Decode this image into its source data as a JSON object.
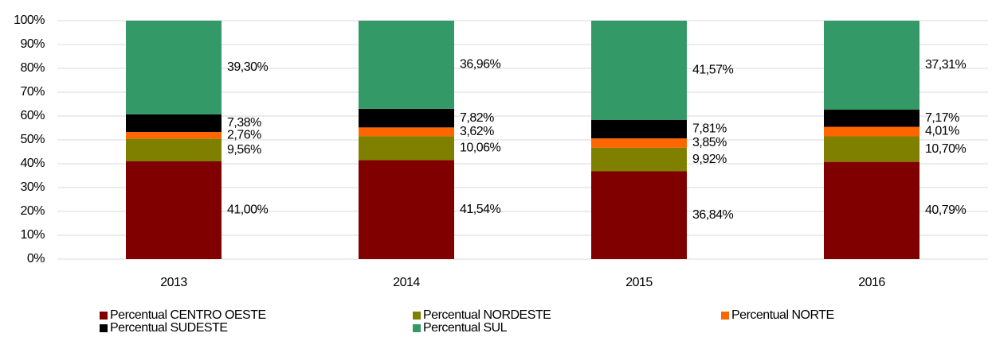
{
  "chart_data": {
    "type": "stacked_bar",
    "categories": [
      "2013",
      "2014",
      "2015",
      "2016"
    ],
    "series": [
      {
        "name": "Percentual CENTRO OESTE",
        "color": "#800000",
        "values": [
          41.0,
          41.54,
          36.84,
          40.79
        ],
        "value_labels": [
          "41,00%",
          "41,54%",
          "36,84%",
          "40,79%"
        ]
      },
      {
        "name": "Percentual NORDESTE",
        "color": "#808000",
        "values": [
          9.56,
          10.06,
          9.92,
          10.7
        ],
        "value_labels": [
          "9,56%",
          "10,06%",
          "9,92%",
          "10,70%"
        ]
      },
      {
        "name": "Percentual NORTE",
        "color": "#ff6600",
        "values": [
          2.76,
          3.62,
          3.85,
          4.01
        ],
        "value_labels": [
          "2,76%",
          "3,62%",
          "3,85%",
          "4,01%"
        ]
      },
      {
        "name": "Percentual SUDESTE",
        "color": "#000000",
        "values": [
          7.38,
          7.82,
          7.81,
          7.17
        ],
        "value_labels": [
          "7,38%",
          "7,82%",
          "7,81%",
          "7,17%"
        ]
      },
      {
        "name": "Percentual SUL",
        "color": "#339966",
        "values": [
          39.3,
          36.96,
          41.57,
          37.31
        ],
        "value_labels": [
          "39,30%",
          "36,96%",
          "41,57%",
          "37,31%"
        ]
      }
    ],
    "ylim": [
      0,
      100
    ],
    "yticks": [
      {
        "value": 0,
        "label": "0%"
      },
      {
        "value": 10,
        "label": "10%"
      },
      {
        "value": 20,
        "label": "20%"
      },
      {
        "value": 30,
        "label": "30%"
      },
      {
        "value": 40,
        "label": "40%"
      },
      {
        "value": 50,
        "label": "50%"
      },
      {
        "value": 60,
        "label": "60%"
      },
      {
        "value": 70,
        "label": "70%"
      },
      {
        "value": 80,
        "label": "80%"
      },
      {
        "value": 90,
        "label": "90%"
      },
      {
        "value": 100,
        "label": "100%"
      }
    ],
    "grid": true,
    "legend": "bottom"
  }
}
